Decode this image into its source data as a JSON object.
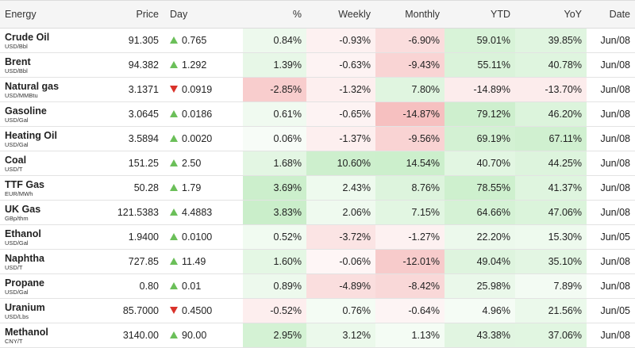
{
  "header": {
    "energy": "Energy",
    "price": "Price",
    "day": "Day",
    "pct": "%",
    "weekly": "Weekly",
    "monthly": "Monthly",
    "ytd": "YTD",
    "yoy": "YoY",
    "date": "Date"
  },
  "rows": [
    {
      "name": "Crude Oil",
      "unit": "USD/Bbl",
      "price": "91.305",
      "dir": "up",
      "day": "0.765",
      "pct": "0.84%",
      "weekly": "-0.93%",
      "monthly": "-6.90%",
      "ytd": "59.01%",
      "yoy": "39.85%",
      "date": "Jun/08"
    },
    {
      "name": "Brent",
      "unit": "USD/Bbl",
      "price": "94.382",
      "dir": "up",
      "day": "1.292",
      "pct": "1.39%",
      "weekly": "-0.63%",
      "monthly": "-9.43%",
      "ytd": "55.11%",
      "yoy": "40.78%",
      "date": "Jun/08"
    },
    {
      "name": "Natural gas",
      "unit": "USD/MMBtu",
      "price": "3.1371",
      "dir": "down",
      "day": "0.0919",
      "pct": "-2.85%",
      "weekly": "-1.32%",
      "monthly": "7.80%",
      "ytd": "-14.89%",
      "yoy": "-13.70%",
      "date": "Jun/08"
    },
    {
      "name": "Gasoline",
      "unit": "USD/Gal",
      "price": "3.0645",
      "dir": "up",
      "day": "0.0186",
      "pct": "0.61%",
      "weekly": "-0.65%",
      "monthly": "-14.87%",
      "ytd": "79.12%",
      "yoy": "46.20%",
      "date": "Jun/08"
    },
    {
      "name": "Heating Oil",
      "unit": "USD/Gal",
      "price": "3.5894",
      "dir": "up",
      "day": "0.0020",
      "pct": "0.06%",
      "weekly": "-1.37%",
      "monthly": "-9.56%",
      "ytd": "69.19%",
      "yoy": "67.11%",
      "date": "Jun/08"
    },
    {
      "name": "Coal",
      "unit": "USD/T",
      "price": "151.25",
      "dir": "up",
      "day": "2.50",
      "pct": "1.68%",
      "weekly": "10.60%",
      "monthly": "14.54%",
      "ytd": "40.70%",
      "yoy": "44.25%",
      "date": "Jun/08"
    },
    {
      "name": "TTF Gas",
      "unit": "EUR/MWh",
      "price": "50.28",
      "dir": "up",
      "day": "1.79",
      "pct": "3.69%",
      "weekly": "2.43%",
      "monthly": "8.76%",
      "ytd": "78.55%",
      "yoy": "41.37%",
      "date": "Jun/08"
    },
    {
      "name": "UK Gas",
      "unit": "GBp/thm",
      "price": "121.5383",
      "dir": "up",
      "day": "4.4883",
      "pct": "3.83%",
      "weekly": "2.06%",
      "monthly": "7.15%",
      "ytd": "64.66%",
      "yoy": "47.06%",
      "date": "Jun/08"
    },
    {
      "name": "Ethanol",
      "unit": "USD/Gal",
      "price": "1.9400",
      "dir": "up",
      "day": "0.0100",
      "pct": "0.52%",
      "weekly": "-3.72%",
      "monthly": "-1.27%",
      "ytd": "22.20%",
      "yoy": "15.30%",
      "date": "Jun/05"
    },
    {
      "name": "Naphtha",
      "unit": "USD/T",
      "price": "727.85",
      "dir": "up",
      "day": "11.49",
      "pct": "1.60%",
      "weekly": "-0.06%",
      "monthly": "-12.01%",
      "ytd": "49.04%",
      "yoy": "35.10%",
      "date": "Jun/08"
    },
    {
      "name": "Propane",
      "unit": "USD/Gal",
      "price": "0.80",
      "dir": "up",
      "day": "0.01",
      "pct": "0.89%",
      "weekly": "-4.89%",
      "monthly": "-8.42%",
      "ytd": "25.98%",
      "yoy": "7.89%",
      "date": "Jun/08"
    },
    {
      "name": "Uranium",
      "unit": "USD/Lbs",
      "price": "85.7000",
      "dir": "down",
      "day": "0.4500",
      "pct": "-0.52%",
      "weekly": "0.76%",
      "monthly": "-0.64%",
      "ytd": "4.96%",
      "yoy": "21.56%",
      "date": "Jun/05"
    },
    {
      "name": "Methanol",
      "unit": "CNY/T",
      "price": "3140.00",
      "dir": "up",
      "day": "90.00",
      "pct": "2.95%",
      "weekly": "3.12%",
      "monthly": "1.13%",
      "ytd": "43.38%",
      "yoy": "37.06%",
      "date": "Jun/08"
    }
  ],
  "colors": {
    "up_arrow": "#6bbf59",
    "down_arrow": "#d9322a",
    "header_bg": "#f5f5f5"
  }
}
